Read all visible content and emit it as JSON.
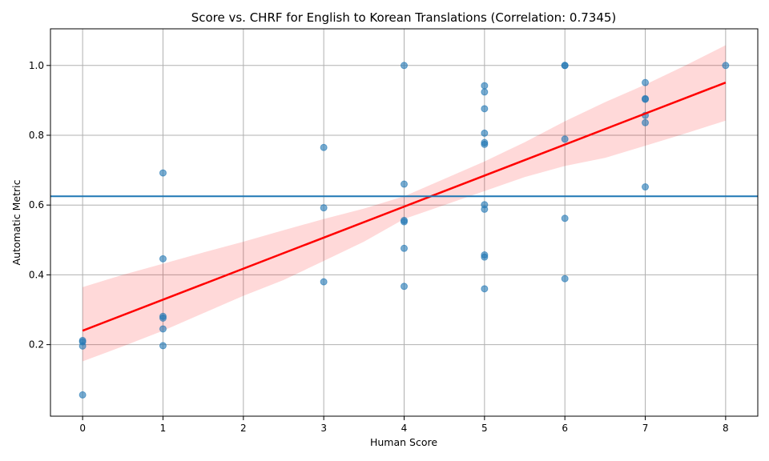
{
  "chart_data": {
    "type": "scatter",
    "title": "Score vs. CHRF for English to Korean Translations (Correlation: 0.7345)",
    "xlabel": "Human Score",
    "ylabel": "Automatic Metric",
    "xlim": [
      -0.4,
      8.4
    ],
    "ylim": [
      -0.005,
      1.105
    ],
    "x_ticks": [
      0,
      1,
      2,
      3,
      4,
      5,
      6,
      7,
      8
    ],
    "y_ticks": [
      0.2,
      0.4,
      0.6,
      0.8,
      1.0
    ],
    "x_tick_labels": [
      "0",
      "1",
      "2",
      "3",
      "4",
      "5",
      "6",
      "7",
      "8"
    ],
    "y_tick_labels": [
      "0.2",
      "0.4",
      "0.6",
      "0.8",
      "1.0"
    ],
    "grid": true,
    "colors": {
      "points": "#1f77b4",
      "regression": "#ff0000",
      "band": "#ff0000",
      "reference_line": "#1f77b4"
    },
    "points": [
      {
        "x": 0,
        "y": 0.212
      },
      {
        "x": 0,
        "y": 0.208
      },
      {
        "x": 0,
        "y": 0.196
      },
      {
        "x": 0,
        "y": 0.056
      },
      {
        "x": 1,
        "y": 0.692
      },
      {
        "x": 1,
        "y": 0.446
      },
      {
        "x": 1,
        "y": 0.281
      },
      {
        "x": 1,
        "y": 0.276
      },
      {
        "x": 1,
        "y": 0.245
      },
      {
        "x": 1,
        "y": 0.197
      },
      {
        "x": 3,
        "y": 0.765
      },
      {
        "x": 3,
        "y": 0.592
      },
      {
        "x": 3,
        "y": 0.38
      },
      {
        "x": 4,
        "y": 1.0
      },
      {
        "x": 4,
        "y": 0.66
      },
      {
        "x": 4,
        "y": 0.556
      },
      {
        "x": 4,
        "y": 0.552
      },
      {
        "x": 4,
        "y": 0.476
      },
      {
        "x": 4,
        "y": 0.367
      },
      {
        "x": 5,
        "y": 0.942
      },
      {
        "x": 5,
        "y": 0.924
      },
      {
        "x": 5,
        "y": 0.876
      },
      {
        "x": 5,
        "y": 0.806
      },
      {
        "x": 5,
        "y": 0.779
      },
      {
        "x": 5,
        "y": 0.774
      },
      {
        "x": 5,
        "y": 0.601
      },
      {
        "x": 5,
        "y": 0.588
      },
      {
        "x": 5,
        "y": 0.457
      },
      {
        "x": 5,
        "y": 0.451
      },
      {
        "x": 5,
        "y": 0.36
      },
      {
        "x": 6,
        "y": 1.0
      },
      {
        "x": 6,
        "y": 1.0
      },
      {
        "x": 6,
        "y": 0.789
      },
      {
        "x": 6,
        "y": 0.562
      },
      {
        "x": 6,
        "y": 0.389
      },
      {
        "x": 7,
        "y": 0.951
      },
      {
        "x": 7,
        "y": 0.905
      },
      {
        "x": 7,
        "y": 0.903
      },
      {
        "x": 7,
        "y": 0.857
      },
      {
        "x": 7,
        "y": 0.836
      },
      {
        "x": 7,
        "y": 0.652
      },
      {
        "x": 8,
        "y": 1.0
      }
    ],
    "regression_line": {
      "x": [
        0,
        8
      ],
      "y": [
        0.24,
        0.951
      ]
    },
    "confidence_band": {
      "x": [
        0,
        0.5,
        1,
        1.5,
        2,
        2.5,
        3,
        3.5,
        4,
        4.5,
        5,
        5.5,
        6,
        6.5,
        7,
        7.5,
        8
      ],
      "upper": [
        0.365,
        0.4,
        0.432,
        0.464,
        0.495,
        0.528,
        0.56,
        0.59,
        0.625,
        0.675,
        0.725,
        0.78,
        0.84,
        0.895,
        0.945,
        1.0,
        1.058
      ],
      "lower": [
        0.152,
        0.195,
        0.24,
        0.29,
        0.34,
        0.385,
        0.44,
        0.495,
        0.56,
        0.6,
        0.64,
        0.68,
        0.712,
        0.735,
        0.77,
        0.805,
        0.842
      ]
    },
    "reference_line": {
      "y": 0.625
    }
  }
}
